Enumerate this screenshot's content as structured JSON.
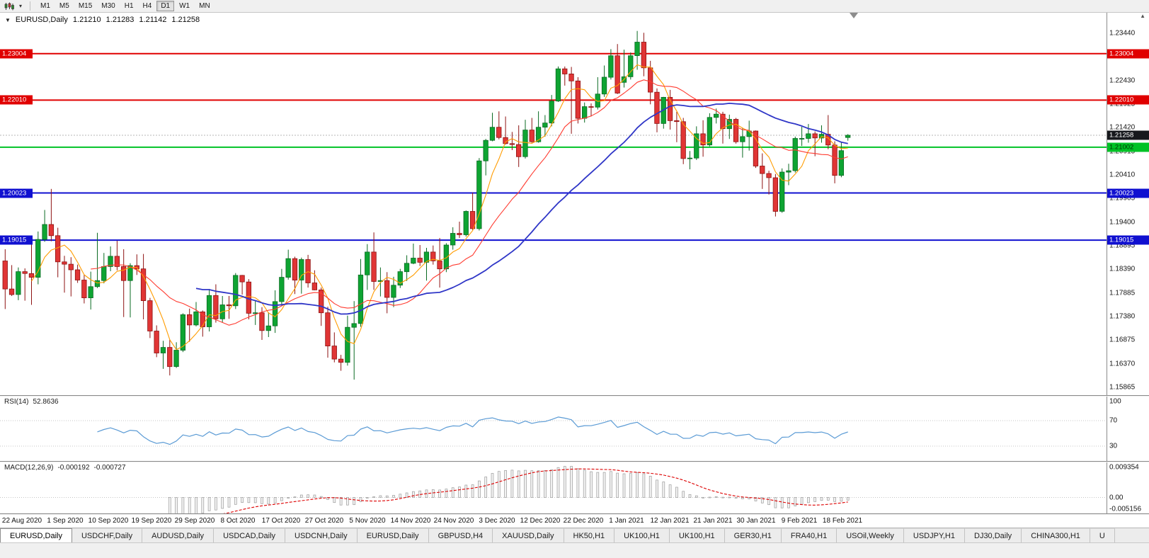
{
  "toolbar": {
    "chart_type_icon": "candlestick-chart",
    "timeframes": [
      "M1",
      "M5",
      "M15",
      "M30",
      "H1",
      "H4",
      "D1",
      "W1",
      "MN"
    ],
    "active_timeframe": "D1"
  },
  "chart": {
    "symbol_title": "EURUSD,Daily",
    "open": "1.21210",
    "high": "1.21283",
    "low": "1.21142",
    "close": "1.21258",
    "bid_label": "1.21258",
    "price_axis_labels": [
      "1.23440",
      "1.22935",
      "1.22430",
      "1.21925",
      "1.21420",
      "1.20915",
      "1.20410",
      "1.19905",
      "1.19400",
      "1.18895",
      "1.18390",
      "1.17885",
      "1.17380",
      "1.16875",
      "1.16370",
      "1.15865"
    ],
    "date_axis_labels": [
      "22 Aug 2020",
      "1 Sep 2020",
      "10 Sep 2020",
      "19 Sep 2020",
      "29 Sep 2020",
      "8 Oct 2020",
      "17 Oct 2020",
      "27 Oct 2020",
      "5 Nov 2020",
      "14 Nov 2020",
      "24 Nov 2020",
      "3 Dec 2020",
      "12 Dec 2020",
      "22 Dec 2020",
      "1 Jan 2021",
      "12 Jan 2021",
      "21 Jan 2021",
      "30 Jan 2021",
      "9 Feb 2021",
      "18 Feb 2021"
    ]
  },
  "indicators": {
    "rsi": {
      "label": "RSI(14)",
      "value": "52.8636",
      "levels": [
        "100",
        "70",
        "30"
      ]
    },
    "macd": {
      "label": "MACD(12,26,9)",
      "main_value": "-0.000192",
      "signal_value": "-0.000727",
      "axis_labels": [
        "0.009354",
        "0.00",
        "-0.005156"
      ]
    }
  },
  "tabs": {
    "items": [
      {
        "label": "EURUSD,Daily",
        "active": true
      },
      {
        "label": "USDCHF,Daily",
        "active": false
      },
      {
        "label": "AUDUSD,Daily",
        "active": false
      },
      {
        "label": "USDCAD,Daily",
        "active": false
      },
      {
        "label": "USDCNH,Daily",
        "active": false
      },
      {
        "label": "EURUSD,Daily",
        "active": false
      },
      {
        "label": "GBPUSD,H4",
        "active": false
      },
      {
        "label": "XAUUSD,Daily",
        "active": false
      },
      {
        "label": "HK50,H1",
        "active": false
      },
      {
        "label": "UK100,H1",
        "active": false
      },
      {
        "label": "UK100,H1",
        "active": false
      },
      {
        "label": "GER30,H1",
        "active": false
      },
      {
        "label": "FRA40,H1",
        "active": false
      },
      {
        "label": "USOil,Weekly",
        "active": false
      },
      {
        "label": "USDJPY,H1",
        "active": false
      },
      {
        "label": "DJ30,Daily",
        "active": false
      },
      {
        "label": "CHINA300,H1",
        "active": false
      },
      {
        "label": "U",
        "active": false
      }
    ]
  },
  "colors": {
    "up": "#0ea432",
    "up_edge": "#0b6b23",
    "down": "#e03535",
    "down_edge": "#8e1212",
    "bid_line": "#b4b4b4",
    "bid_badge_bg": "#17191d",
    "bid_badge_text": "#ffffff",
    "rsi_line": "#5b9bd5",
    "macd_hist_fill": "#f2f2f2",
    "macd_hist_edge": "#9c9c9c",
    "macd_signal": "#dd0000",
    "grid": "#c4c4c4",
    "hline_red": "#e00000",
    "hline_blue": "#1010d0",
    "hline_green": "#00c226"
  },
  "chart_data": {
    "type": "candlestick",
    "symbol": "EURUSD",
    "timeframe": "Daily",
    "bid": 1.21258,
    "price_max_tick": 1.2344,
    "price_min_tick": 1.15865,
    "hlines": [
      {
        "price": 1.23004,
        "label": "1.23004",
        "color": "#e00000",
        "text": "#ffffff",
        "left_badge": true,
        "right_badge": true
      },
      {
        "price": 1.2201,
        "label": "1.22010",
        "color": "#e00000",
        "text": "#ffffff",
        "left_badge": true,
        "right_badge": true
      },
      {
        "price": 1.21002,
        "label": "1.21002",
        "color": "#00c226",
        "text": "#003300",
        "left_badge": false,
        "right_badge": true
      },
      {
        "price": 1.20023,
        "label": "1.20023",
        "color": "#1010d0",
        "text": "#ffffff",
        "left_badge": true,
        "right_badge": true
      },
      {
        "price": 1.19015,
        "label": "1.19015",
        "color": "#1010d0",
        "text": "#ffffff",
        "left_badge": true,
        "right_badge": true
      }
    ],
    "moving_averages": [
      {
        "period": 5,
        "color": "#ff9c00",
        "width": 1.1
      },
      {
        "period": 14,
        "color": "#ff3b30",
        "width": 1.1
      },
      {
        "period": 30,
        "color": "#2f36c7",
        "width": 1.8
      }
    ],
    "rsi_period": 14,
    "macd_params": [
      12,
      26,
      9
    ],
    "candles": [
      [
        "2020-08-21",
        1.1857,
        1.1882,
        1.1754,
        1.1797
      ],
      [
        "2020-08-24",
        1.1797,
        1.1848,
        1.1782,
        1.1785
      ],
      [
        "2020-08-25",
        1.1785,
        1.1843,
        1.1773,
        1.1834
      ],
      [
        "2020-08-26",
        1.1834,
        1.1841,
        1.1772,
        1.183
      ],
      [
        "2020-08-27",
        1.183,
        1.1898,
        1.1763,
        1.1822
      ],
      [
        "2020-08-28",
        1.1822,
        1.192,
        1.1807,
        1.1903
      ],
      [
        "2020-08-31",
        1.1903,
        1.1966,
        1.1898,
        1.1935
      ],
      [
        "2020-09-01",
        1.1935,
        1.2011,
        1.1899,
        1.1911
      ],
      [
        "2020-09-02",
        1.1911,
        1.1928,
        1.1822,
        1.1855
      ],
      [
        "2020-09-03",
        1.1855,
        1.1868,
        1.1789,
        1.185
      ],
      [
        "2020-09-04",
        1.185,
        1.1865,
        1.1781,
        1.1838
      ],
      [
        "2020-09-07",
        1.1838,
        1.1849,
        1.181,
        1.1816
      ],
      [
        "2020-09-08",
        1.1816,
        1.1827,
        1.1766,
        1.1778
      ],
      [
        "2020-09-09",
        1.1778,
        1.1834,
        1.1753,
        1.1802
      ],
      [
        "2020-09-10",
        1.1802,
        1.1917,
        1.1799,
        1.1815
      ],
      [
        "2020-09-11",
        1.1815,
        1.1874,
        1.1809,
        1.1845
      ],
      [
        "2020-09-14",
        1.1845,
        1.1888,
        1.1835,
        1.1867
      ],
      [
        "2020-09-15",
        1.1867,
        1.19,
        1.1837,
        1.1845
      ],
      [
        "2020-09-16",
        1.1845,
        1.1882,
        1.1737,
        1.1815
      ],
      [
        "2020-09-17",
        1.1815,
        1.1852,
        1.1736,
        1.1847
      ],
      [
        "2020-09-18",
        1.1847,
        1.1871,
        1.1827,
        1.184
      ],
      [
        "2020-09-21",
        1.184,
        1.1872,
        1.1732,
        1.1772
      ],
      [
        "2020-09-22",
        1.1772,
        1.1778,
        1.1692,
        1.1707
      ],
      [
        "2020-09-23",
        1.1707,
        1.1719,
        1.1651,
        1.166
      ],
      [
        "2020-09-24",
        1.166,
        1.1686,
        1.1626,
        1.1672
      ],
      [
        "2020-09-25",
        1.1672,
        1.1688,
        1.1612,
        1.1631
      ],
      [
        "2020-09-28",
        1.1631,
        1.1683,
        1.1628,
        1.1666
      ],
      [
        "2020-09-29",
        1.1666,
        1.1745,
        1.1662,
        1.1742
      ],
      [
        "2020-09-30",
        1.1742,
        1.1755,
        1.1684,
        1.172
      ],
      [
        "2020-10-01",
        1.172,
        1.1769,
        1.1717,
        1.1748
      ],
      [
        "2020-10-02",
        1.1748,
        1.1751,
        1.1695,
        1.1716
      ],
      [
        "2020-10-05",
        1.1716,
        1.1797,
        1.1706,
        1.1783
      ],
      [
        "2020-10-06",
        1.1783,
        1.1807,
        1.1725,
        1.1733
      ],
      [
        "2020-10-07",
        1.1733,
        1.1782,
        1.1725,
        1.1763
      ],
      [
        "2020-10-08",
        1.1763,
        1.1782,
        1.1733,
        1.1761
      ],
      [
        "2020-10-09",
        1.1761,
        1.1831,
        1.1754,
        1.1826
      ],
      [
        "2020-10-12",
        1.1826,
        1.1827,
        1.1785,
        1.1812
      ],
      [
        "2020-10-13",
        1.1812,
        1.1818,
        1.1732,
        1.1745
      ],
      [
        "2020-10-14",
        1.1745,
        1.1772,
        1.172,
        1.1746
      ],
      [
        "2020-10-15",
        1.1746,
        1.1758,
        1.1688,
        1.1708
      ],
      [
        "2020-10-16",
        1.1708,
        1.1747,
        1.1694,
        1.1718
      ],
      [
        "2020-10-19",
        1.1718,
        1.1794,
        1.1703,
        1.177
      ],
      [
        "2020-10-20",
        1.177,
        1.184,
        1.1761,
        1.1822
      ],
      [
        "2020-10-21",
        1.1822,
        1.1881,
        1.1817,
        1.1862
      ],
      [
        "2020-10-22",
        1.1862,
        1.1866,
        1.1786,
        1.1816
      ],
      [
        "2020-10-23",
        1.1816,
        1.1864,
        1.1787,
        1.186
      ],
      [
        "2020-10-26",
        1.186,
        1.187,
        1.18,
        1.181
      ],
      [
        "2020-10-27",
        1.181,
        1.1837,
        1.1794,
        1.1795
      ],
      [
        "2020-10-28",
        1.1795,
        1.18,
        1.1718,
        1.1746
      ],
      [
        "2020-10-29",
        1.1746,
        1.1759,
        1.165,
        1.1675
      ],
      [
        "2020-10-30",
        1.1675,
        1.1704,
        1.164,
        1.1647
      ],
      [
        "2020-11-02",
        1.1647,
        1.1656,
        1.1622,
        1.164
      ],
      [
        "2020-11-03",
        1.164,
        1.174,
        1.1633,
        1.1715
      ],
      [
        "2020-11-04",
        1.1715,
        1.1771,
        1.1603,
        1.1723
      ],
      [
        "2020-11-05",
        1.1723,
        1.1861,
        1.1716,
        1.1827
      ],
      [
        "2020-11-06",
        1.1827,
        1.1893,
        1.1795,
        1.1876
      ],
      [
        "2020-11-09",
        1.1876,
        1.1918,
        1.1795,
        1.1813
      ],
      [
        "2020-11-10",
        1.1813,
        1.1843,
        1.1781,
        1.1815
      ],
      [
        "2020-11-11",
        1.1815,
        1.1833,
        1.1745,
        1.1779
      ],
      [
        "2020-11-12",
        1.1779,
        1.1823,
        1.1758,
        1.1805
      ],
      [
        "2020-11-13",
        1.1805,
        1.184,
        1.1799,
        1.1834
      ],
      [
        "2020-11-16",
        1.1834,
        1.1869,
        1.1814,
        1.1852
      ],
      [
        "2020-11-17",
        1.1852,
        1.1894,
        1.185,
        1.1863
      ],
      [
        "2020-11-18",
        1.1863,
        1.1891,
        1.1846,
        1.1854
      ],
      [
        "2020-11-19",
        1.1854,
        1.1885,
        1.1815,
        1.1876
      ],
      [
        "2020-11-20",
        1.1876,
        1.189,
        1.1849,
        1.1857
      ],
      [
        "2020-11-23",
        1.1857,
        1.1906,
        1.18,
        1.184
      ],
      [
        "2020-11-24",
        1.184,
        1.1895,
        1.1833,
        1.1891
      ],
      [
        "2020-11-25",
        1.1891,
        1.1929,
        1.1881,
        1.1916
      ],
      [
        "2020-11-26",
        1.1916,
        1.1941,
        1.1906,
        1.1913
      ],
      [
        "2020-11-27",
        1.1913,
        1.1965,
        1.1909,
        1.1963
      ],
      [
        "2020-11-30",
        1.1963,
        1.2003,
        1.1923,
        1.1926
      ],
      [
        "2020-12-01",
        1.1926,
        1.2077,
        1.1922,
        1.2071
      ],
      [
        "2020-12-02",
        1.2071,
        1.2118,
        1.204,
        1.2115
      ],
      [
        "2020-12-03",
        1.2115,
        1.2174,
        1.2113,
        1.2143
      ],
      [
        "2020-12-04",
        1.2143,
        1.2177,
        1.2117,
        1.2121
      ],
      [
        "2020-12-07",
        1.2121,
        1.2166,
        1.2106,
        1.2108
      ],
      [
        "2020-12-08",
        1.2108,
        1.2133,
        1.2094,
        1.2106
      ],
      [
        "2020-12-09",
        1.2106,
        1.2147,
        1.2058,
        1.208
      ],
      [
        "2020-12-10",
        1.208,
        1.2159,
        1.2076,
        1.2137
      ],
      [
        "2020-12-11",
        1.2137,
        1.2163,
        1.211,
        1.2112
      ],
      [
        "2020-12-14",
        1.2112,
        1.2177,
        1.211,
        1.2143
      ],
      [
        "2020-12-15",
        1.2143,
        1.2169,
        1.2123,
        1.2152
      ],
      [
        "2020-12-16",
        1.2152,
        1.2212,
        1.2145,
        1.2199
      ],
      [
        "2020-12-17",
        1.2199,
        1.2273,
        1.2197,
        1.2268
      ],
      [
        "2020-12-18",
        1.2268,
        1.2273,
        1.2232,
        1.2257
      ],
      [
        "2020-12-21",
        1.2257,
        1.2272,
        1.2129,
        1.2242
      ],
      [
        "2020-12-22",
        1.2242,
        1.225,
        1.2151,
        1.2162
      ],
      [
        "2020-12-23",
        1.2162,
        1.2196,
        1.2153,
        1.2187
      ],
      [
        "2020-12-24",
        1.2187,
        1.2194,
        1.2166,
        1.2186
      ],
      [
        "2020-12-28",
        1.2186,
        1.225,
        1.2181,
        1.2214
      ],
      [
        "2020-12-29",
        1.2214,
        1.2275,
        1.2208,
        1.225
      ],
      [
        "2020-12-30",
        1.225,
        1.231,
        1.2245,
        1.2296
      ],
      [
        "2020-12-31",
        1.2296,
        1.2321,
        1.2214,
        1.2216
      ],
      [
        "2021-01-04",
        1.2239,
        1.2309,
        1.2228,
        1.2251
      ],
      [
        "2021-01-05",
        1.2251,
        1.2303,
        1.2245,
        1.2296
      ],
      [
        "2021-01-06",
        1.2296,
        1.2349,
        1.2266,
        1.2325
      ],
      [
        "2021-01-07",
        1.2325,
        1.2345,
        1.2252,
        1.227
      ],
      [
        "2021-01-08",
        1.227,
        1.2285,
        1.2192,
        1.2218
      ],
      [
        "2021-01-11",
        1.2218,
        1.2226,
        1.2132,
        1.2151
      ],
      [
        "2021-01-12",
        1.2151,
        1.2208,
        1.214,
        1.2207
      ],
      [
        "2021-01-13",
        1.2207,
        1.2223,
        1.2138,
        1.2157
      ],
      [
        "2021-01-14",
        1.2157,
        1.2176,
        1.2111,
        1.2155
      ],
      [
        "2021-01-15",
        1.2155,
        1.2163,
        1.2064,
        1.2076
      ],
      [
        "2021-01-18",
        1.2076,
        1.2092,
        1.2053,
        1.2077
      ],
      [
        "2021-01-19",
        1.2077,
        1.2145,
        1.2073,
        1.2129
      ],
      [
        "2021-01-20",
        1.2129,
        1.2158,
        1.208,
        1.2105
      ],
      [
        "2021-01-21",
        1.2105,
        1.2173,
        1.2102,
        1.2164
      ],
      [
        "2021-01-22",
        1.2164,
        1.2183,
        1.2151,
        1.2171
      ],
      [
        "2021-01-25",
        1.2171,
        1.2176,
        1.2108,
        1.214
      ],
      [
        "2021-01-26",
        1.214,
        1.217,
        1.2118,
        1.216
      ],
      [
        "2021-01-27",
        1.216,
        1.2163,
        1.2108,
        1.2112
      ],
      [
        "2021-01-28",
        1.2112,
        1.2142,
        1.2078,
        1.2123
      ],
      [
        "2021-01-29",
        1.2123,
        1.2157,
        1.2093,
        1.2135
      ],
      [
        "2021-02-01",
        1.2135,
        1.2136,
        1.2056,
        1.206
      ],
      [
        "2021-02-02",
        1.206,
        1.2087,
        1.2011,
        1.2044
      ],
      [
        "2021-02-03",
        1.2044,
        1.205,
        1.1999,
        1.2035
      ],
      [
        "2021-02-04",
        1.2035,
        1.2043,
        1.1952,
        1.1963
      ],
      [
        "2021-02-05",
        1.1963,
        1.2055,
        1.196,
        1.2047
      ],
      [
        "2021-02-08",
        1.2047,
        1.2065,
        1.2019,
        1.205
      ],
      [
        "2021-02-09",
        1.205,
        1.2123,
        1.2046,
        1.2119
      ],
      [
        "2021-02-10",
        1.2119,
        1.2144,
        1.2103,
        1.2119
      ],
      [
        "2021-02-11",
        1.2119,
        1.215,
        1.211,
        1.2129
      ],
      [
        "2021-02-12",
        1.2129,
        1.2134,
        1.2081,
        1.212
      ],
      [
        "2021-02-15",
        1.212,
        1.2147,
        1.211,
        1.2128
      ],
      [
        "2021-02-16",
        1.2128,
        1.2169,
        1.2096,
        1.2105
      ],
      [
        "2021-02-17",
        1.2105,
        1.2113,
        1.2023,
        1.204
      ],
      [
        "2021-02-18",
        1.204,
        1.211,
        1.2036,
        1.2093
      ],
      [
        "2021-02-19",
        1.2121,
        1.21283,
        1.21142,
        1.21258
      ]
    ]
  }
}
